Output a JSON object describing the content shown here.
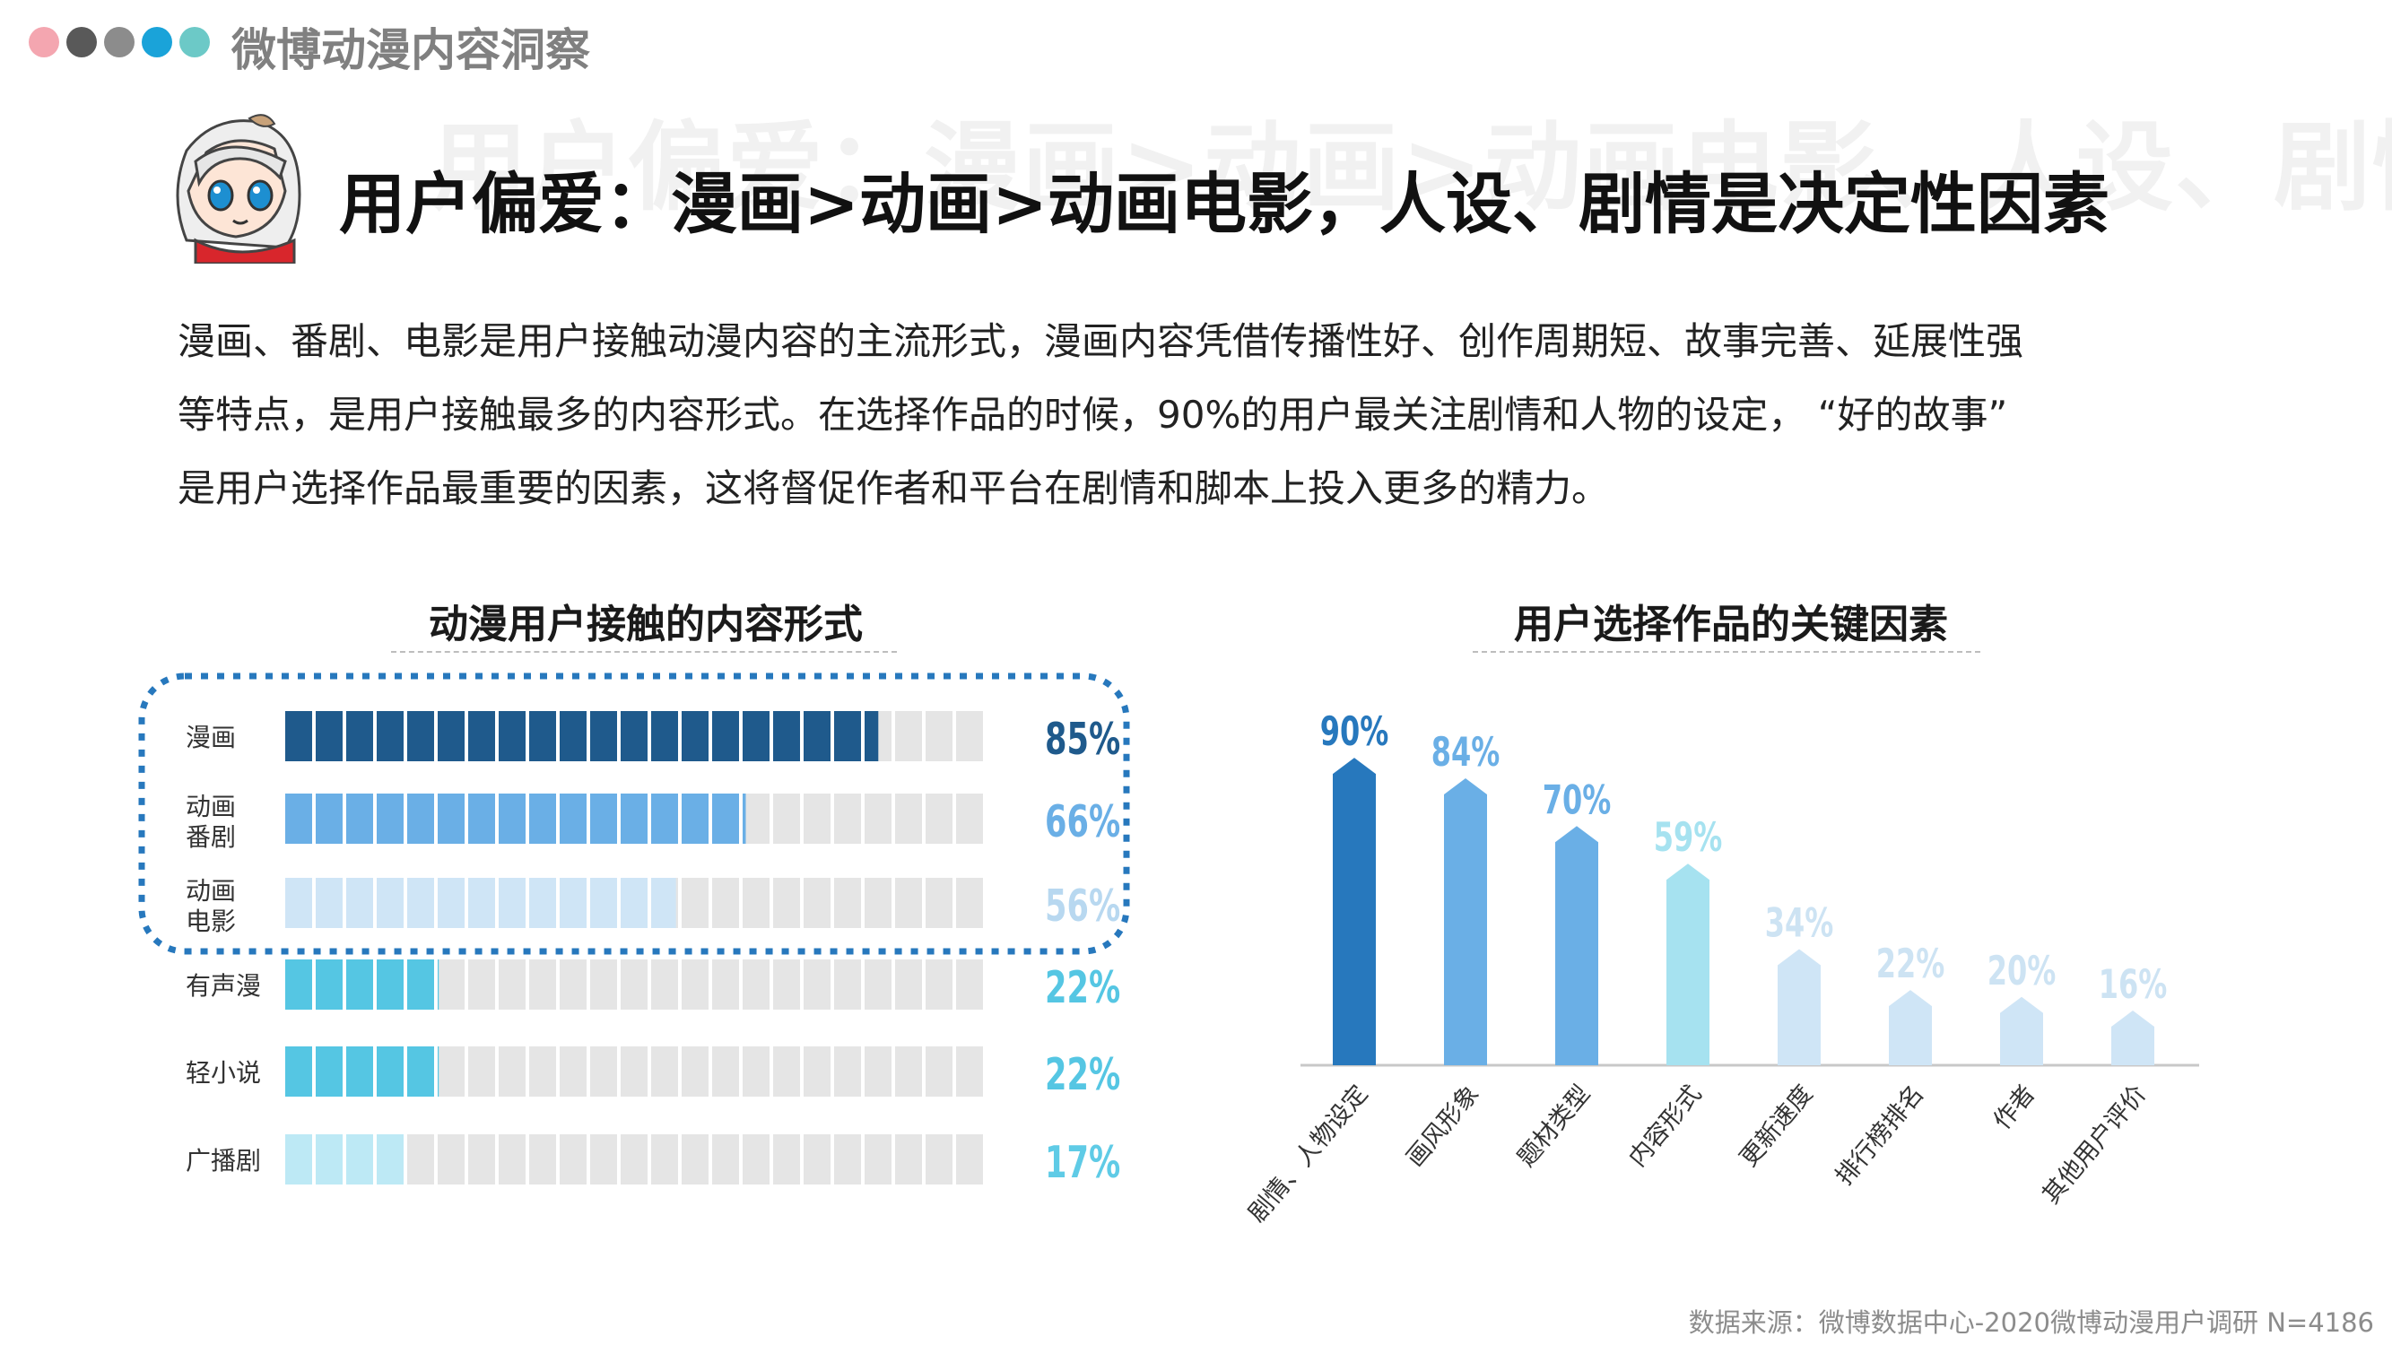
{
  "header": {
    "brand": "微博动漫内容洞察",
    "headline": "用户偏爱：漫画>动画>动画电影，人设、剧情是决定性因素",
    "watermark": "用户偏爱：漫画>动画>动画电影、人设、剧情",
    "dot_colors": [
      "#f4a6b0",
      "#595959",
      "#8c8c8c",
      "#1aa3d9",
      "#6cc9c7"
    ]
  },
  "intro": {
    "lines": [
      "漫画、番剧、电影是用户接触动漫内容的主流形式，漫画内容凭借传播性好、创作周期短、故事完善、延展性强",
      "等特点，是用户接触最多的内容形式。在选择作品的时候，90%的用户最关注剧情和人物的设定，  “好的故事”",
      "是用户选择作品最重要的因素，这将督促作者和平台在剧情和脚本上投入更多的精力。"
    ]
  },
  "chart_data": [
    {
      "type": "bar",
      "orientation": "horizontal",
      "title": "动漫用户接触的内容形式",
      "categories": [
        "漫画",
        "动画\n番剧",
        "动画\n电影",
        "有声漫",
        "轻小说",
        "广播剧"
      ],
      "values": [
        85,
        66,
        56,
        22,
        22,
        17
      ],
      "labels": [
        "85%",
        "66%",
        "56%",
        "22%",
        "22%",
        "17%"
      ],
      "unit": "%",
      "xlim": [
        0,
        100
      ],
      "colors": [
        "#1f5a8c",
        "#6aafe6",
        "#cfe5f6",
        "#55c6e3",
        "#55c6e3",
        "#bde9f5"
      ],
      "label_colors": [
        "#1f5a8c",
        "#6aafe6",
        "#b8d8f0",
        "#55c6e3",
        "#55c6e3",
        "#5fcbe6"
      ],
      "highlight": "top-3"
    },
    {
      "type": "bar",
      "orientation": "vertical",
      "title": "用户选择作品的关键因素",
      "categories": [
        "剧情、人物设定",
        "画风形象",
        "题材类型",
        "内容形式",
        "更新速度",
        "排行榜排名",
        "作者",
        "其他用户评价"
      ],
      "values": [
        90,
        84,
        70,
        59,
        34,
        22,
        20,
        16
      ],
      "labels": [
        "90%",
        "84%",
        "70%",
        "59%",
        "34%",
        "22%",
        "20%",
        "16%"
      ],
      "unit": "%",
      "ylim": [
        0,
        100
      ],
      "colors": [
        "#2778bd",
        "#6aafe6",
        "#6aafe6",
        "#a6e2f0",
        "#cfe5f6",
        "#cfe5f6",
        "#cfe5f6",
        "#cfe5f6"
      ],
      "label_colors": [
        "#2778bd",
        "#6aafe6",
        "#6aafe6",
        "#a6e2f0",
        "#cde3f3",
        "#cde3f3",
        "#cde3f3",
        "#cde3f3"
      ]
    }
  ],
  "footer": {
    "source": "数据来源：微博数据中心-2020微博动漫用户调研  N=4186"
  }
}
